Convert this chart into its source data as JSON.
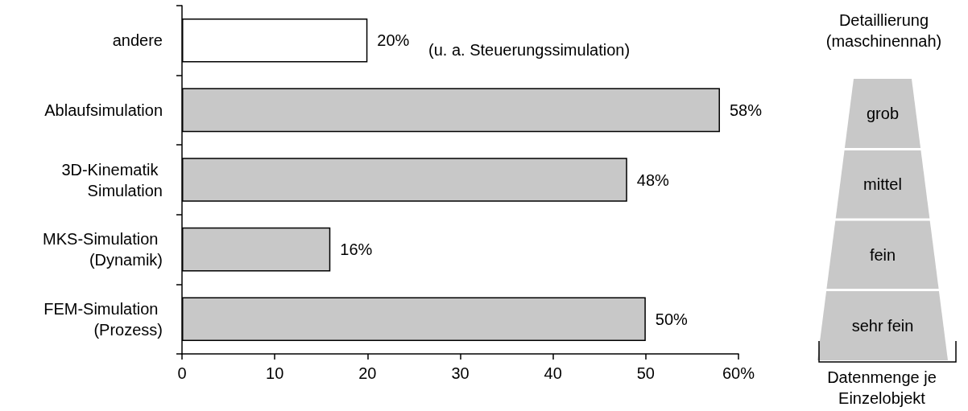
{
  "chart_data": [
    {
      "type": "bar",
      "orientation": "horizontal",
      "categories": [
        "andere",
        "Ablaufsimulation",
        "3D-Kinematik Simulation",
        "MKS-Simulation (Dynamik)",
        "FEM-Simulation (Prozess)"
      ],
      "values": [
        20,
        58,
        48,
        16,
        50
      ],
      "colors": [
        "#ffffff",
        "#c8c8c8",
        "#c8c8c8",
        "#c8c8c8",
        "#c8c8c8"
      ],
      "value_labels": [
        "20%",
        "58%",
        "48%",
        "16%",
        "50%"
      ],
      "xlim": [
        0,
        60
      ],
      "xticks": [
        0,
        10,
        20,
        30,
        40,
        50,
        {
          "value": 60,
          "label": "60%"
        }
      ],
      "grid": false,
      "annotations": [
        "(u. a. Steuerungssimulation)"
      ]
    },
    {
      "type": "other",
      "title": "Detaillierung (maschinennah)",
      "categories": [
        "grob",
        "mittel",
        "fein",
        "sehr fein"
      ],
      "color": "#c8c8c8",
      "xlabel": "Datenmenge je Einzelobjekt"
    }
  ]
}
